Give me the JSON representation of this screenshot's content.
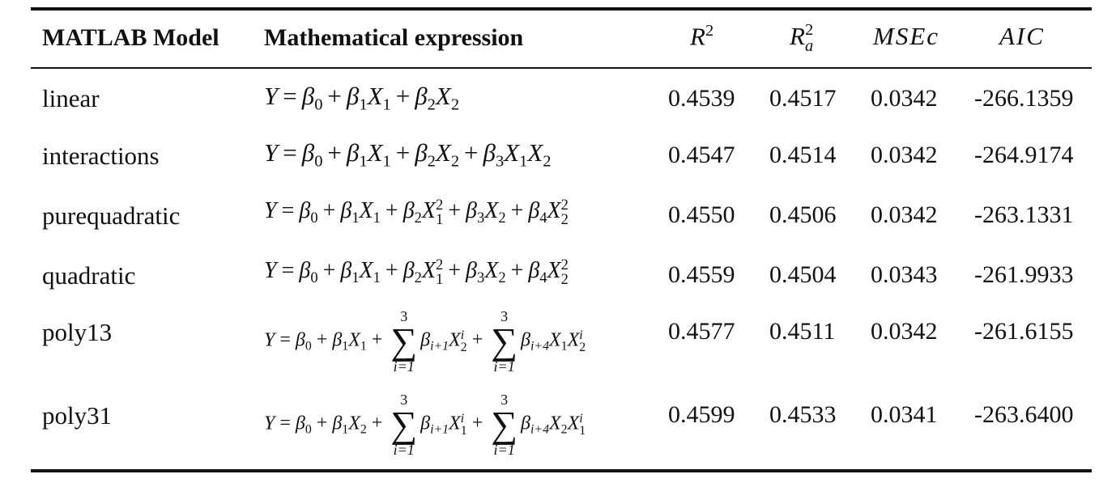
{
  "table": {
    "headers": {
      "model": "MATLAB Model",
      "expression": "Mathematical expression",
      "r2": "R",
      "r2_sup": "2",
      "r2a": "R",
      "r2a_sup": "2",
      "r2a_sub": "a",
      "msec": "MSEc",
      "aic": "AIC"
    },
    "rows": [
      {
        "model": "linear",
        "r2": "0.4539",
        "r2a": "0.4517",
        "msec": "0.0342",
        "aic": "-266.1359"
      },
      {
        "model": "interactions",
        "r2": "0.4547",
        "r2a": "0.4514",
        "msec": "0.0342",
        "aic": "-264.9174"
      },
      {
        "model": "purequadratic",
        "r2": "0.4550",
        "r2a": "0.4506",
        "msec": "0.0342",
        "aic": "-263.1331"
      },
      {
        "model": "quadratic",
        "r2": "0.4559",
        "r2a": "0.4504",
        "msec": "0.0343",
        "aic": "-261.9933"
      },
      {
        "model": "poly13",
        "r2": "0.4577",
        "r2a": "0.4511",
        "msec": "0.0342",
        "aic": "-261.6155"
      },
      {
        "model": "poly31",
        "r2": "0.4599",
        "r2a": "0.4533",
        "msec": "0.0341",
        "aic": "-263.6400"
      }
    ],
    "sum_limits": {
      "upper": "3",
      "lower": "i=1"
    }
  }
}
